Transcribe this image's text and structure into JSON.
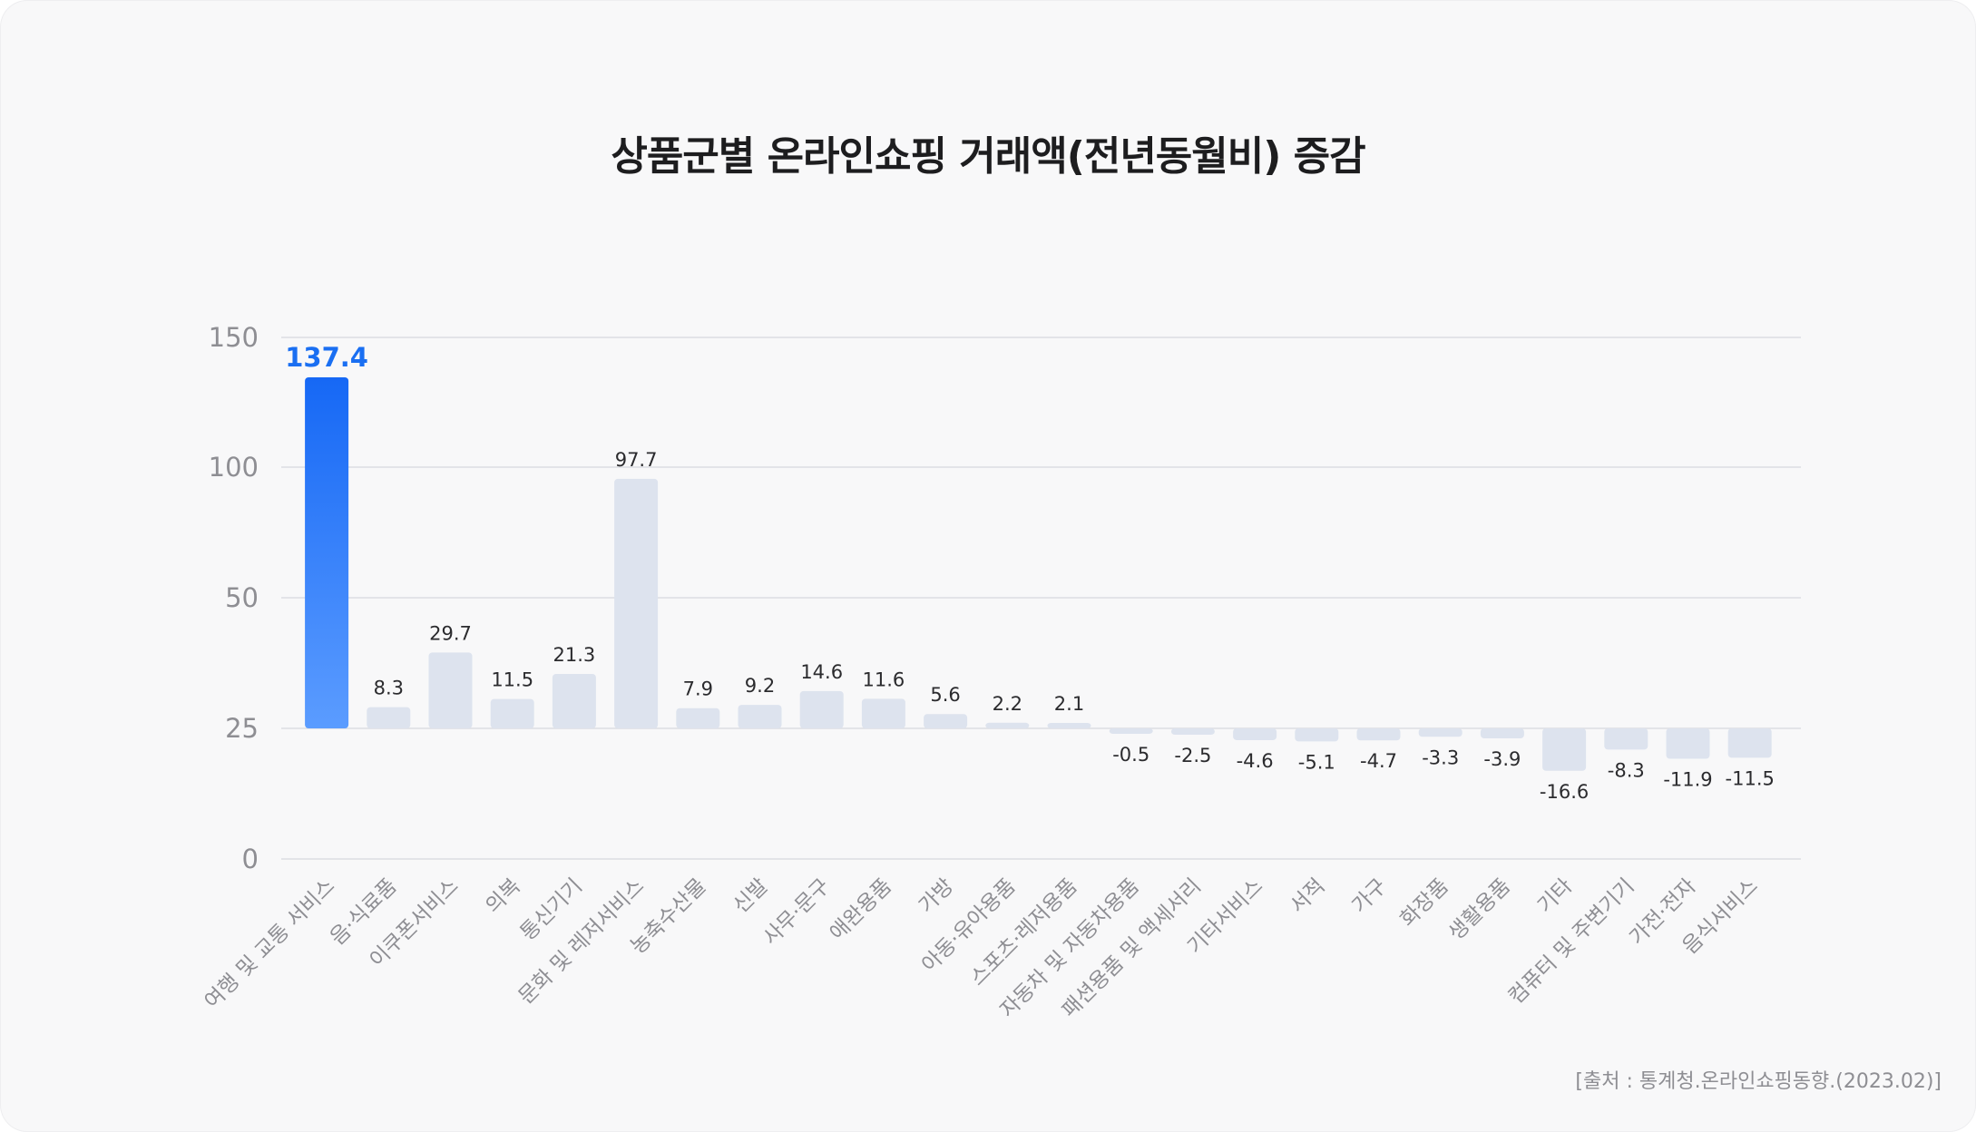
{
  "title": "상품군별 온라인쇼핑 거래액(전년동월비) 증감",
  "source": "[출처 : 통계청.온라인쇼핑동향.(2023.02)]",
  "colors": {
    "highlight_top": "#1668f5",
    "highlight_bottom": "#5b9cff",
    "bar": "#dde3ee",
    "highlight_label": "#1a6ff2",
    "grid": "#dcdde2"
  },
  "chart_data": {
    "type": "bar",
    "title": "상품군별 온라인쇼핑 거래액(전년동월비) 증감",
    "ylabel": "",
    "xlabel": "",
    "y_ticks": [
      "150",
      "100",
      "50",
      "25",
      "0"
    ],
    "grid": true,
    "highlight_index": 0,
    "categories": [
      "여행 및 교통 서비스",
      "음·식료품",
      "이쿠폰서비스",
      "의복",
      "통신기기",
      "문화 및 레저서비스",
      "농축수산물",
      "신발",
      "사무·문구",
      "애완용품",
      "가방",
      "아동·유아용품",
      "스포츠·레저용품",
      "자동차 및 자동차용품",
      "패션용품 및 액세서리",
      "기타서비스",
      "서적",
      "가구",
      "화장품",
      "생활용품",
      "기타",
      "컴퓨터 및 주변기기",
      "가전·전자",
      "음식서비스"
    ],
    "values": [
      137.4,
      8.3,
      29.7,
      11.5,
      21.3,
      97.7,
      7.9,
      9.2,
      14.6,
      11.6,
      5.6,
      2.2,
      2.1,
      -0.5,
      -2.5,
      -4.6,
      -5.1,
      -4.7,
      -3.3,
      -3.9,
      -16.6,
      -8.3,
      -11.9,
      -11.5
    ],
    "value_labels": [
      "137.4",
      "8.3",
      "29.7",
      "11.5",
      "21.3",
      "97.7",
      "7.9",
      "9.2",
      "14.6",
      "11.6",
      "5.6",
      "2.2",
      "2.1",
      "-0.5",
      "-2.5",
      "-4.6",
      "-5.1",
      "-4.7",
      "-3.3",
      "-3.9",
      "-16.6",
      "-8.3",
      "-11.9",
      "-11.5"
    ]
  }
}
